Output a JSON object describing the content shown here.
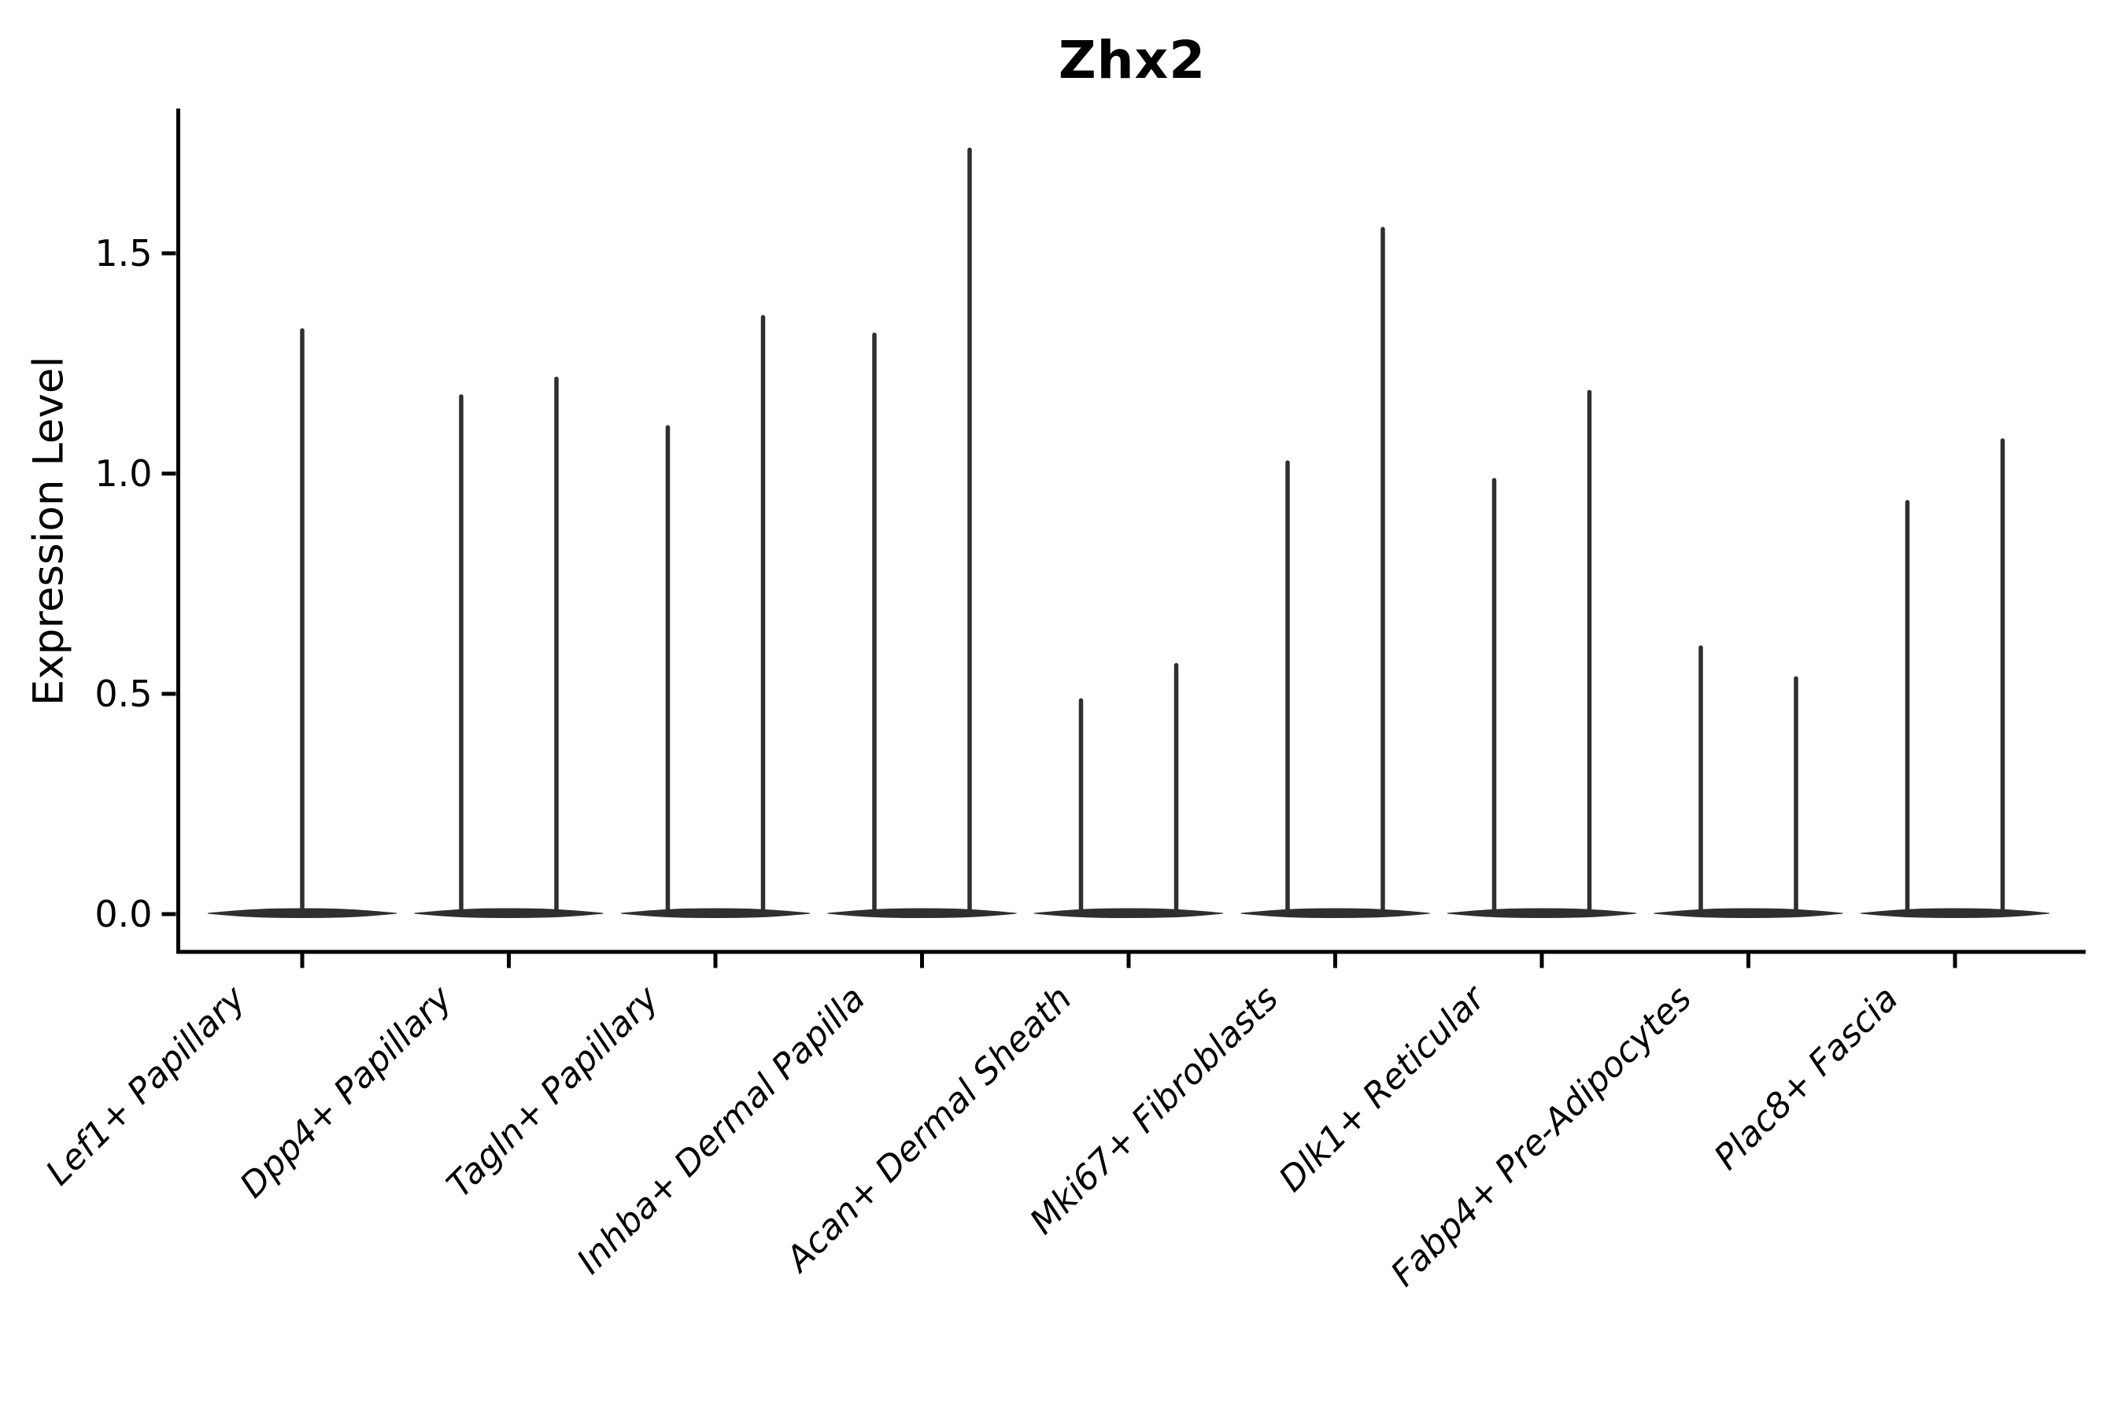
{
  "title": "Zhx2",
  "axes": {
    "y_label": "Expression Level",
    "y_tick_labels": [
      "0.0",
      "0.5",
      "1.0",
      "1.5"
    ]
  },
  "chart_data": {
    "type": "violin",
    "title": "Zhx2",
    "xlabel": "",
    "ylabel": "Expression Level",
    "ylim": [
      -0.09,
      1.83
    ],
    "yticks": [
      0.0,
      0.5,
      1.0,
      1.5
    ],
    "grid": false,
    "legend": "none",
    "violin_color": "#2f2f2f",
    "axis_color": "#000000",
    "description": "Violin plot of Zhx2 expression; each violin is a dense mass at 0 with a thin tail rising to its maximum expression level. All categories except the first contain two violins side by side.",
    "categories": [
      {
        "label": "Lef1+ Papillary",
        "violins": [
          {
            "position": "center",
            "max": 1.33
          }
        ]
      },
      {
        "label": "Dpp4+ Papillary",
        "violins": [
          {
            "position": "left",
            "max": 1.18
          },
          {
            "position": "right",
            "max": 1.22
          }
        ]
      },
      {
        "label": "Tagln+ Papillary",
        "violins": [
          {
            "position": "left",
            "max": 1.11
          },
          {
            "position": "right",
            "max": 1.36
          }
        ]
      },
      {
        "label": "Inhba+ Dermal Papilla",
        "violins": [
          {
            "position": "left",
            "max": 1.32
          },
          {
            "position": "right",
            "max": 1.74
          }
        ]
      },
      {
        "label": "Acan+ Dermal Sheath",
        "violins": [
          {
            "position": "left",
            "max": 0.49
          },
          {
            "position": "right",
            "max": 0.57
          }
        ]
      },
      {
        "label": "Mki67+ Fibroblasts",
        "violins": [
          {
            "position": "left",
            "max": 1.03
          },
          {
            "position": "right",
            "max": 1.56
          }
        ]
      },
      {
        "label": "Dlk1+ Reticular",
        "violins": [
          {
            "position": "left",
            "max": 0.99
          },
          {
            "position": "right",
            "max": 1.19
          }
        ]
      },
      {
        "label": "Fabp4+ Pre-Adipocytes",
        "violins": [
          {
            "position": "left",
            "max": 0.61
          },
          {
            "position": "right",
            "max": 0.54
          }
        ]
      },
      {
        "label": "Plac8+ Fascia",
        "violins": [
          {
            "position": "left",
            "max": 0.94
          },
          {
            "position": "right",
            "max": 1.08
          }
        ]
      }
    ]
  }
}
